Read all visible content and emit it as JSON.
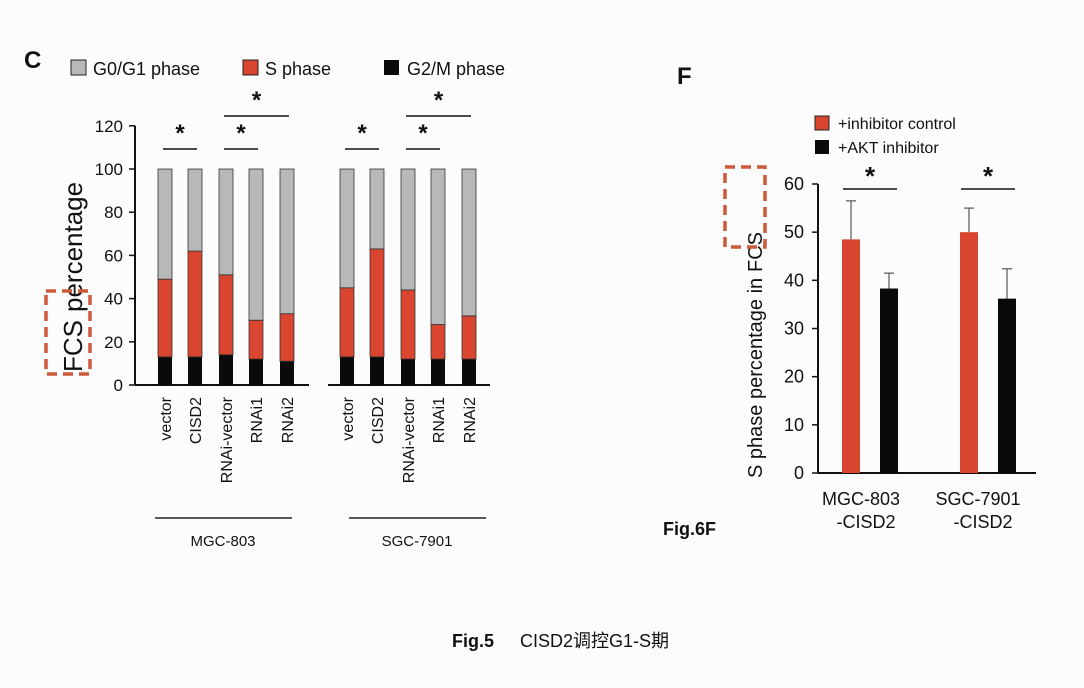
{
  "panel_c": {
    "letter": "C",
    "legend": [
      {
        "label": "G0/G1 phase",
        "color": "#b8b8b8"
      },
      {
        "label": "S phase",
        "color": "#d9452f"
      },
      {
        "label": "G2/M phase",
        "color": "#0a0a0a"
      }
    ],
    "ylabel_boxed": "FCS",
    "ylabel_rest": "percentage",
    "group_labels": [
      "MGC-803",
      "SGC-7901"
    ]
  },
  "panel_f": {
    "letter": "F",
    "ylabel_rest": "S phase percentage in",
    "ylabel_boxed": "FCS",
    "legend": [
      {
        "label": "+inhibitor control",
        "color": "#d9452f"
      },
      {
        "label": "+AKT inhibitor",
        "color": "#0a0a0a"
      }
    ],
    "category_lines": [
      [
        "MGC-803",
        "-CISD2"
      ],
      [
        "SGC-7901",
        "-CISD2"
      ]
    ]
  },
  "fig6f_label": "Fig.6F",
  "caption": {
    "bold": "Fig.5",
    "text": "CISD2调控G1-S期"
  },
  "highlight_color": "#cc5a3c",
  "chart_data": [
    {
      "type": "bar",
      "stacked": true,
      "categories": [
        "vector",
        "CISD2",
        "RNAi-vector",
        "RNAi1",
        "RNAi2",
        "vector",
        "CISD2",
        "RNAi-vector",
        "RNAi1",
        "RNAi2"
      ],
      "groups": [
        "MGC-803",
        "MGC-803",
        "MGC-803",
        "MGC-803",
        "MGC-803",
        "SGC-7901",
        "SGC-7901",
        "SGC-7901",
        "SGC-7901",
        "SGC-7901"
      ],
      "series": [
        {
          "name": "G2/M phase",
          "values": [
            13,
            13,
            14,
            12,
            11,
            13,
            13,
            12,
            12,
            12
          ]
        },
        {
          "name": "S phase",
          "values": [
            36,
            49,
            37,
            18,
            22,
            32,
            50,
            32,
            16,
            20
          ]
        },
        {
          "name": "G0/G1 phase",
          "values": [
            51,
            38,
            49,
            70,
            67,
            55,
            37,
            56,
            72,
            68
          ]
        }
      ],
      "ylim": [
        0,
        120
      ],
      "yticks": [
        0,
        20,
        40,
        60,
        80,
        100,
        120
      ],
      "significance": [
        {
          "from": 0,
          "to": 1,
          "label": "*"
        },
        {
          "from": 2,
          "to": 3,
          "label": "*"
        },
        {
          "from": 2,
          "to": 4,
          "label": "*"
        },
        {
          "from": 5,
          "to": 6,
          "label": "*"
        },
        {
          "from": 7,
          "to": 8,
          "label": "*"
        },
        {
          "from": 7,
          "to": 9,
          "label": "*"
        }
      ]
    },
    {
      "type": "bar",
      "categories": [
        "MGC-803-CISD2",
        "SGC-7901-CISD2"
      ],
      "series": [
        {
          "name": "+inhibitor control",
          "values": [
            48.5,
            50
          ],
          "errors": [
            8,
            5
          ]
        },
        {
          "name": "+AKT inhibitor",
          "values": [
            38.3,
            36.2
          ],
          "errors": [
            3.2,
            6.2
          ]
        }
      ],
      "ylim": [
        0,
        60
      ],
      "yticks": [
        0,
        10,
        20,
        30,
        40,
        50,
        60
      ],
      "significance": [
        {
          "category": 0,
          "label": "*"
        },
        {
          "category": 1,
          "label": "*"
        }
      ]
    }
  ]
}
